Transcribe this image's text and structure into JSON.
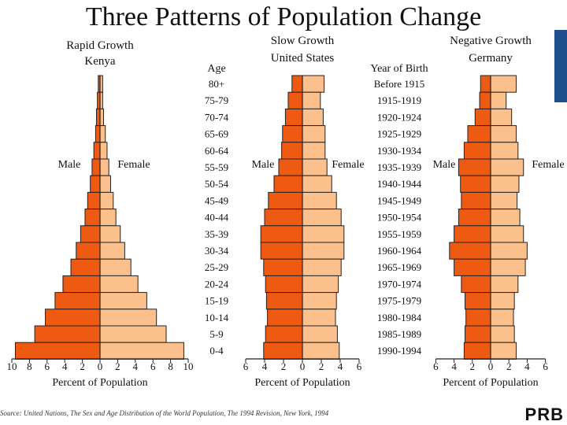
{
  "title": "Three Patterns of Population Change",
  "source": "Source: United Nations, The Sex and Age Distribution of the World Population, The 1994 Revision, New York, 1994",
  "logo_text": "PRB",
  "colors": {
    "male": "#ee5a12",
    "female": "#fcc08c",
    "stroke": "#222222",
    "accent_bar": "#1f4e8c"
  },
  "age_header": "Age",
  "birth_header": "Year of Birth",
  "age_groups": [
    "80+",
    "75-79",
    "70-74",
    "65-69",
    "60-64",
    "55-59",
    "50-54",
    "45-49",
    "40-44",
    "35-39",
    "30-34",
    "25-29",
    "20-24",
    "15-19",
    "10-14",
    "5-9",
    "0-4"
  ],
  "birth_years": [
    "Before 1915",
    "1915-1919",
    "1920-1924",
    "1925-1929",
    "1930-1934",
    "1935-1939",
    "1940-1944",
    "1945-1949",
    "1950-1954",
    "1955-1959",
    "1960-1964",
    "1965-1969",
    "1970-1974",
    "1975-1979",
    "1980-1984",
    "1985-1989",
    "1990-1994"
  ],
  "chart_data": [
    {
      "type": "bar",
      "title": "Rapid Growth",
      "subtitle": "Kenya",
      "xlabel": "Percent of Population",
      "male_label": "Male",
      "female_label": "Female",
      "xlim": [
        -10,
        10
      ],
      "xticks": [
        "10",
        "8",
        "6",
        "4",
        "2",
        "0",
        "2",
        "4",
        "6",
        "8",
        "10"
      ],
      "categories": [
        "80+",
        "75-79",
        "70-74",
        "65-69",
        "60-64",
        "55-59",
        "50-54",
        "45-49",
        "40-44",
        "35-39",
        "30-34",
        "25-29",
        "20-24",
        "15-19",
        "10-14",
        "5-9",
        "0-4"
      ],
      "series": [
        {
          "name": "Male",
          "values": [
            0.2,
            0.3,
            0.4,
            0.5,
            0.7,
            0.9,
            1.1,
            1.4,
            1.7,
            2.2,
            2.7,
            3.3,
            4.2,
            5.1,
            6.2,
            7.4,
            9.6
          ]
        },
        {
          "name": "Female",
          "values": [
            0.3,
            0.3,
            0.4,
            0.6,
            0.8,
            1.0,
            1.2,
            1.5,
            1.8,
            2.3,
            2.8,
            3.5,
            4.3,
            5.3,
            6.4,
            7.5,
            9.5
          ]
        }
      ]
    },
    {
      "type": "bar",
      "title": "Slow Growth",
      "subtitle": "United States",
      "xlabel": "Percent of Population",
      "male_label": "Male",
      "female_label": "Female",
      "xlim": [
        -6,
        6
      ],
      "xticks": [
        "6",
        "4",
        "2",
        "0",
        "2",
        "4",
        "6"
      ],
      "categories": [
        "80+",
        "75-79",
        "70-74",
        "65-69",
        "60-64",
        "55-59",
        "50-54",
        "45-49",
        "40-44",
        "35-39",
        "30-34",
        "25-29",
        "20-24",
        "15-19",
        "10-14",
        "5-9",
        "0-4"
      ],
      "series": [
        {
          "name": "Male",
          "values": [
            1.1,
            1.5,
            1.8,
            2.1,
            2.2,
            2.5,
            3.0,
            3.6,
            4.0,
            4.4,
            4.4,
            4.1,
            3.9,
            3.8,
            3.7,
            3.9,
            4.1
          ]
        },
        {
          "name": "Female",
          "values": [
            2.3,
            1.9,
            2.2,
            2.4,
            2.4,
            2.6,
            3.1,
            3.6,
            4.1,
            4.4,
            4.4,
            4.1,
            3.8,
            3.6,
            3.5,
            3.7,
            3.9
          ]
        }
      ]
    },
    {
      "type": "bar",
      "title": "Negative Growth",
      "subtitle": "Germany",
      "xlabel": "Percent of Population",
      "male_label": "Male",
      "female_label": "Female",
      "xlim": [
        -6,
        6
      ],
      "xticks": [
        "6",
        "4",
        "2",
        "0",
        "2",
        "4",
        "6"
      ],
      "categories": [
        "80+",
        "75-79",
        "70-74",
        "65-69",
        "60-64",
        "55-59",
        "50-54",
        "45-49",
        "40-44",
        "35-39",
        "30-34",
        "25-29",
        "20-24",
        "15-19",
        "10-14",
        "5-9",
        "0-4"
      ],
      "series": [
        {
          "name": "Male",
          "values": [
            1.1,
            1.2,
            1.7,
            2.5,
            2.9,
            3.5,
            3.3,
            3.2,
            3.5,
            4.0,
            4.5,
            4.0,
            3.2,
            2.8,
            2.7,
            2.8,
            2.9
          ]
        },
        {
          "name": "Female",
          "values": [
            2.8,
            1.7,
            2.3,
            2.8,
            3.0,
            3.6,
            3.1,
            2.9,
            3.2,
            3.6,
            4.0,
            3.8,
            3.0,
            2.6,
            2.5,
            2.6,
            2.8
          ]
        }
      ]
    }
  ]
}
